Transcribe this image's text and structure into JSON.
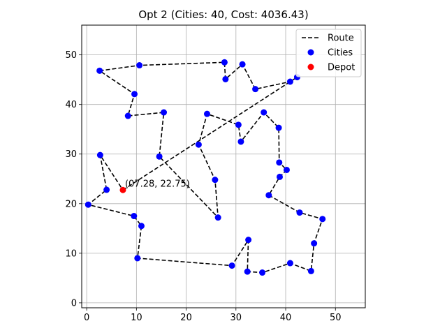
{
  "chart_data": {
    "type": "scatter",
    "title": "Opt 2 (Cities: 40, Cost: 4036.43)",
    "xlabel": "",
    "ylabel": "",
    "xlim": [
      -1,
      56
    ],
    "ylim": [
      -1,
      56
    ],
    "xticks": [
      0,
      10,
      20,
      30,
      40,
      50
    ],
    "yticks": [
      0,
      10,
      20,
      30,
      40,
      50
    ],
    "grid": true,
    "legend_position": "top-right",
    "legend": [
      {
        "label": "Route",
        "kind": "line",
        "color": "#000000"
      },
      {
        "label": "Cities",
        "kind": "marker",
        "color": "#0000ff"
      },
      {
        "label": "Depot",
        "kind": "marker",
        "color": "#ff0000"
      }
    ],
    "route": [
      [
        7.28,
        22.75
      ],
      [
        42.3,
        45.5
      ],
      [
        40.9,
        44.6
      ],
      [
        33.9,
        43.1
      ],
      [
        31.3,
        48.1
      ],
      [
        27.9,
        45.1
      ],
      [
        27.7,
        48.5
      ],
      [
        10.6,
        47.9
      ],
      [
        2.6,
        46.8
      ],
      [
        9.6,
        42.1
      ],
      [
        8.3,
        37.7
      ],
      [
        15.5,
        38.4
      ],
      [
        14.6,
        29.5
      ],
      [
        26.4,
        17.2
      ],
      [
        25.8,
        24.8
      ],
      [
        22.5,
        31.9
      ],
      [
        24.2,
        38.1
      ],
      [
        30.5,
        35.9
      ],
      [
        31.0,
        32.5
      ],
      [
        35.6,
        38.4
      ],
      [
        38.6,
        35.3
      ],
      [
        38.7,
        28.3
      ],
      [
        40.2,
        26.8
      ],
      [
        38.8,
        25.4
      ],
      [
        36.6,
        21.7
      ],
      [
        42.8,
        18.2
      ],
      [
        47.4,
        16.9
      ],
      [
        45.7,
        12.0
      ],
      [
        45.1,
        6.4
      ],
      [
        40.9,
        8.0
      ],
      [
        35.3,
        6.1
      ],
      [
        32.3,
        6.3
      ],
      [
        32.5,
        12.7
      ],
      [
        29.2,
        7.5
      ],
      [
        10.2,
        9.0
      ],
      [
        11.0,
        15.5
      ],
      [
        9.5,
        17.5
      ],
      [
        0.3,
        19.8
      ],
      [
        4.0,
        22.8
      ],
      [
        2.7,
        29.8
      ],
      [
        7.28,
        22.75
      ]
    ],
    "cities": [
      [
        42.3,
        45.5
      ],
      [
        40.9,
        44.6
      ],
      [
        33.9,
        43.1
      ],
      [
        31.3,
        48.1
      ],
      [
        27.9,
        45.1
      ],
      [
        27.7,
        48.5
      ],
      [
        10.6,
        47.9
      ],
      [
        2.6,
        46.8
      ],
      [
        9.6,
        42.1
      ],
      [
        8.3,
        37.7
      ],
      [
        15.5,
        38.4
      ],
      [
        14.6,
        29.5
      ],
      [
        26.4,
        17.2
      ],
      [
        25.8,
        24.8
      ],
      [
        22.5,
        31.9
      ],
      [
        24.2,
        38.1
      ],
      [
        30.5,
        35.9
      ],
      [
        31.0,
        32.5
      ],
      [
        35.6,
        38.4
      ],
      [
        38.6,
        35.3
      ],
      [
        38.7,
        28.3
      ],
      [
        40.2,
        26.8
      ],
      [
        38.8,
        25.4
      ],
      [
        36.6,
        21.7
      ],
      [
        42.8,
        18.2
      ],
      [
        47.4,
        16.9
      ],
      [
        45.7,
        12.0
      ],
      [
        45.1,
        6.4
      ],
      [
        40.9,
        8.0
      ],
      [
        35.3,
        6.1
      ],
      [
        32.3,
        6.3
      ],
      [
        32.5,
        12.7
      ],
      [
        29.2,
        7.5
      ],
      [
        10.2,
        9.0
      ],
      [
        11.0,
        15.5
      ],
      [
        9.5,
        17.5
      ],
      [
        0.3,
        19.8
      ],
      [
        4.0,
        22.8
      ],
      [
        2.7,
        29.8
      ]
    ],
    "depot": [
      7.28,
      22.75
    ],
    "annotations": [
      {
        "text": "(07.28, 22.75)",
        "x": 7.28,
        "y": 22.75
      }
    ]
  }
}
